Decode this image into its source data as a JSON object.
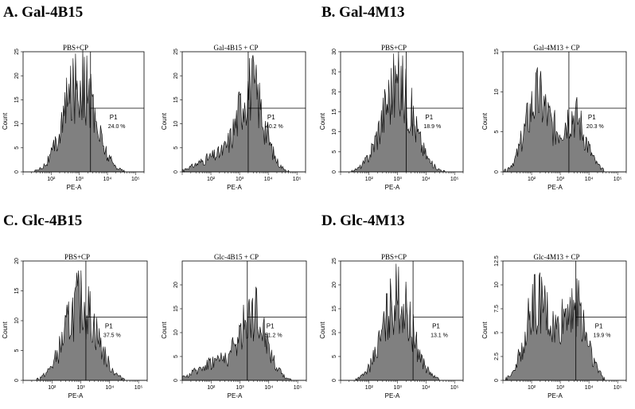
{
  "sections": [
    {
      "label": "A. Gal-4B15"
    },
    {
      "label": "B. Gal-4M13"
    },
    {
      "label": "C. Glc-4B15"
    },
    {
      "label": "D. Glc-4M13"
    }
  ],
  "common": {
    "xlabel": "PE-A",
    "ylabel": "Count",
    "gate_label": "P1"
  },
  "chart_data": [
    {
      "type": "area",
      "title": "PBS+CP",
      "xlabel": "PE-A",
      "ylabel": "Count",
      "x_scale": "log",
      "xlim": [
        10,
        200000
      ],
      "x_ticks": [
        "10²",
        "10³",
        "10⁴",
        "10⁵"
      ],
      "ylim": [
        0,
        25
      ],
      "y_ticks": [
        0,
        5,
        10,
        15,
        20,
        25
      ],
      "gate_label": "P1",
      "gate_percent": "24.0 %",
      "gate_threshold": 2500,
      "peaks": [
        {
          "center": 1000,
          "height": 19,
          "width": 0.55
        }
      ],
      "max_count": 26
    },
    {
      "type": "area",
      "title": "Gal-4B15 + CP",
      "xlabel": "PE-A",
      "ylabel": "Count",
      "x_scale": "log",
      "xlim": [
        10,
        200000
      ],
      "x_ticks": [
        "10²",
        "10³",
        "10⁴",
        "10⁵"
      ],
      "ylim": [
        0,
        25
      ],
      "y_ticks": [
        0,
        5,
        10,
        15,
        20,
        25
      ],
      "gate_label": "P1",
      "gate_percent": "40.2 %",
      "gate_threshold": 2000,
      "peaks": [
        {
          "center": 2500,
          "height": 17,
          "width": 0.45
        },
        {
          "center": 150,
          "height": 3,
          "width": 0.6
        }
      ],
      "max_count": 26
    },
    {
      "type": "area",
      "title": "PBS+CP",
      "xlabel": "PE-A",
      "ylabel": "Count",
      "x_scale": "log",
      "xlim": [
        10,
        200000
      ],
      "x_ticks": [
        "10²",
        "10³",
        "10⁴",
        "10⁵"
      ],
      "ylim": [
        0,
        30
      ],
      "y_ticks": [
        0,
        5,
        10,
        15,
        20,
        25,
        30
      ],
      "gate_label": "P1",
      "gate_percent": "18.9 %",
      "gate_threshold": 2000,
      "peaks": [
        {
          "center": 1000,
          "height": 22,
          "width": 0.55
        }
      ],
      "max_count": 30
    },
    {
      "type": "area",
      "title": "Gal-4M13 + CP",
      "xlabel": "PE-A",
      "ylabel": "Count",
      "x_scale": "log",
      "xlim": [
        10,
        200000
      ],
      "x_ticks": [
        "10²",
        "10³",
        "10⁴",
        "10⁵"
      ],
      "ylim": [
        0,
        15
      ],
      "y_ticks": [
        0,
        5,
        10,
        15
      ],
      "gate_label": "P1",
      "gate_percent": "20.3 %",
      "gate_threshold": 2000,
      "peaks": [
        {
          "center": 160,
          "height": 9,
          "width": 0.42
        },
        {
          "center": 2800,
          "height": 7,
          "width": 0.42
        }
      ],
      "max_count": 16
    },
    {
      "type": "area",
      "title": "PBS+CP",
      "xlabel": "PE-A",
      "ylabel": "Count",
      "x_scale": "log",
      "xlim": [
        10,
        200000
      ],
      "x_ticks": [
        "10²",
        "10³",
        "10⁴",
        "10⁵"
      ],
      "ylim": [
        0,
        20
      ],
      "y_ticks": [
        0,
        5,
        10,
        15,
        20
      ],
      "gate_label": "P1",
      "gate_percent": "37.5 %",
      "gate_threshold": 1500,
      "peaks": [
        {
          "center": 1000,
          "height": 13,
          "width": 0.55
        }
      ],
      "max_count": 24
    },
    {
      "type": "area",
      "title": "Glc-4B15 + CP",
      "xlabel": "PE-A",
      "ylabel": "Count",
      "x_scale": "log",
      "xlim": [
        10,
        200000
      ],
      "x_ticks": [
        "10²",
        "10³",
        "10⁴",
        "10⁵"
      ],
      "ylim": [
        0,
        25
      ],
      "y_ticks": [
        0,
        5,
        10,
        15,
        20
      ],
      "gate_label": "P1",
      "gate_percent": "51.2 %",
      "gate_threshold": 1800,
      "peaks": [
        {
          "center": 3000,
          "height": 14,
          "width": 0.45
        },
        {
          "center": 150,
          "height": 4,
          "width": 0.6
        }
      ],
      "max_count": 24
    },
    {
      "type": "area",
      "title": "PBS+CP",
      "xlabel": "PE-A",
      "ylabel": "Count",
      "x_scale": "log",
      "xlim": [
        10,
        200000
      ],
      "x_ticks": [
        "10²",
        "10³",
        "10⁴",
        "10⁵"
      ],
      "ylim": [
        0,
        25
      ],
      "y_ticks": [
        0,
        5,
        10,
        15,
        20,
        25
      ],
      "gate_label": "P1",
      "gate_percent": "13.1 %",
      "gate_threshold": 3500,
      "peaks": [
        {
          "center": 1000,
          "height": 17,
          "width": 0.52
        }
      ],
      "max_count": 26
    },
    {
      "type": "area",
      "title": "Glc-4M13 + CP",
      "xlabel": "PE-A",
      "ylabel": "Count",
      "x_scale": "log",
      "xlim": [
        10,
        200000
      ],
      "x_ticks": [
        "10²",
        "10³",
        "10⁴",
        "10⁵"
      ],
      "ylim": [
        0,
        12.5
      ],
      "y_ticks": [
        0,
        2.5,
        5,
        7.5,
        10,
        12.5
      ],
      "gate_label": "P1",
      "gate_percent": "19.9 %",
      "gate_threshold": 3500,
      "peaks": [
        {
          "center": 160,
          "height": 8,
          "width": 0.42
        },
        {
          "center": 3000,
          "height": 8,
          "width": 0.42
        }
      ],
      "max_count": 14
    }
  ],
  "colors": {
    "fill": "#808080",
    "stroke": "#000000",
    "background": "#ffffff"
  }
}
